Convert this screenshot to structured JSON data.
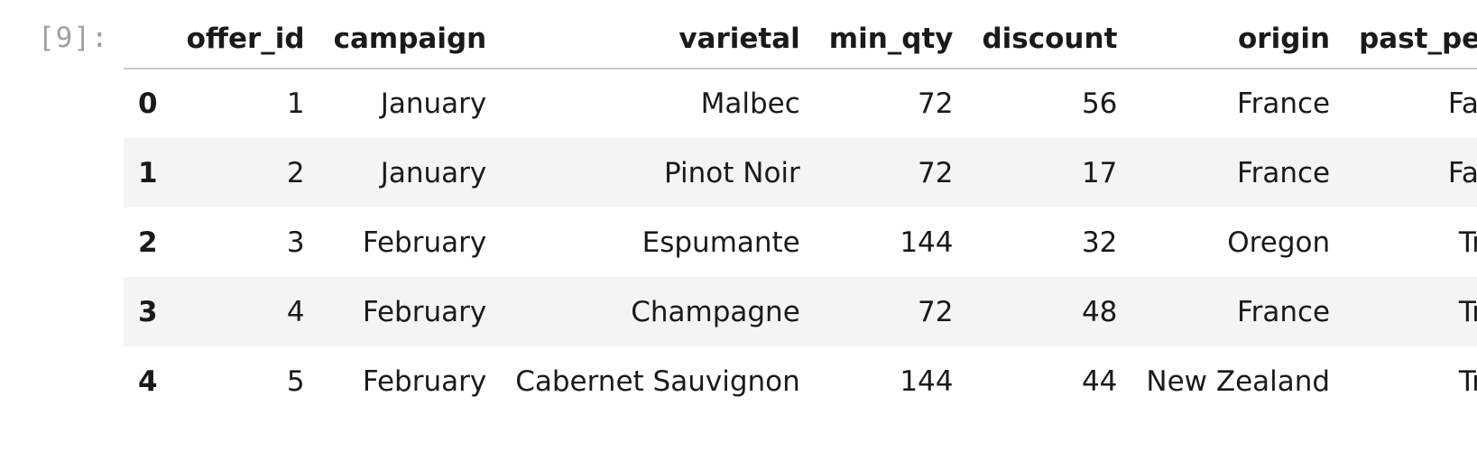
{
  "cell": {
    "prompt": "[9]:"
  },
  "table": {
    "columns": [
      "",
      "offer_id",
      "campaign",
      "varietal",
      "min_qty",
      "discount",
      "origin",
      "past_peak"
    ],
    "rows": [
      {
        "index": "0",
        "offer_id": "1",
        "campaign": "January",
        "varietal": "Malbec",
        "min_qty": "72",
        "discount": "56",
        "origin": "France",
        "past_peak": "False"
      },
      {
        "index": "1",
        "offer_id": "2",
        "campaign": "January",
        "varietal": "Pinot Noir",
        "min_qty": "72",
        "discount": "17",
        "origin": "France",
        "past_peak": "False"
      },
      {
        "index": "2",
        "offer_id": "3",
        "campaign": "February",
        "varietal": "Espumante",
        "min_qty": "144",
        "discount": "32",
        "origin": "Oregon",
        "past_peak": "True"
      },
      {
        "index": "3",
        "offer_id": "4",
        "campaign": "February",
        "varietal": "Champagne",
        "min_qty": "72",
        "discount": "48",
        "origin": "France",
        "past_peak": "True"
      },
      {
        "index": "4",
        "offer_id": "5",
        "campaign": "February",
        "varietal": "Cabernet Sauvignon",
        "min_qty": "144",
        "discount": "44",
        "origin": "New Zealand",
        "past_peak": "True"
      }
    ]
  },
  "colors": {
    "header_rule": "#c8c8c8",
    "stripe": "#f4f4f4",
    "prompt": "#a0a0a0"
  }
}
